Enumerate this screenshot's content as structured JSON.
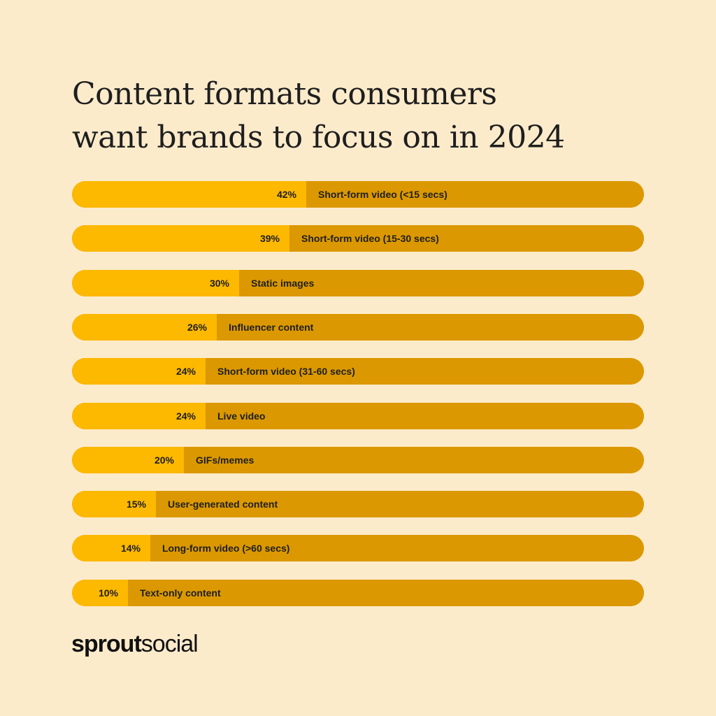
{
  "title_line1": "Content formats consumers",
  "title_line2": "want brands to focus on in 2024",
  "brand": {
    "bold": "sprout",
    "light": "social"
  },
  "colors": {
    "background": "#FCEBCB",
    "bar_fill": "#FDB800",
    "bar_track": "#DB9800",
    "text": "#1E1E1E"
  },
  "chart_data": {
    "type": "bar",
    "orientation": "horizontal",
    "title": "Content formats consumers want brands to focus on in 2024",
    "xlim": [
      0,
      100
    ],
    "unit": "%",
    "grid": false,
    "categories": [
      "Short-form video (<15 secs)",
      "Short-form video (15-30 secs)",
      "Static images",
      "Influencer content",
      "Short-form video (31-60 secs)",
      "Live video",
      "GIFs/memes",
      "User-generated content",
      "Long-form video (>60 secs)",
      "Text-only content"
    ],
    "values": [
      42,
      39,
      30,
      26,
      24,
      24,
      20,
      15,
      14,
      10
    ],
    "value_labels": [
      "42%",
      "39%",
      "30%",
      "26%",
      "24%",
      "24%",
      "20%",
      "15%",
      "14%",
      "10%"
    ]
  }
}
